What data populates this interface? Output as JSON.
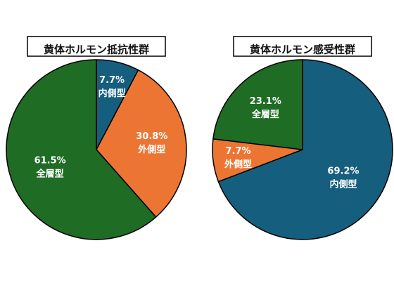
{
  "chart_data": [
    {
      "type": "pie",
      "title": "黄体ホルモン抵抗性群",
      "start_angle_deg": 0,
      "direction": "clockwise",
      "slices": [
        {
          "category": "内側型",
          "percent_label": "7.7%",
          "value": 7.7,
          "color": "#155e7e"
        },
        {
          "category": "外側型",
          "percent_label": "30.8%",
          "value": 30.8,
          "color": "#ec7534"
        },
        {
          "category": "全層型",
          "percent_label": "61.5%",
          "value": 61.5,
          "color": "#1f6c25"
        }
      ]
    },
    {
      "type": "pie",
      "title": "黄体ホルモン感受性群",
      "start_angle_deg": 0,
      "direction": "clockwise",
      "slices": [
        {
          "category": "内側型",
          "percent_label": "69.2%",
          "value": 69.2,
          "color": "#155e7e"
        },
        {
          "category": "外側型",
          "percent_label": "7.7%",
          "value": 7.7,
          "color": "#ec7534"
        },
        {
          "category": "全層型",
          "percent_label": "23.1%",
          "value": 23.1,
          "color": "#1f6c25"
        }
      ]
    }
  ],
  "colors": {
    "edge": "#000000",
    "label": "#ffffff"
  }
}
